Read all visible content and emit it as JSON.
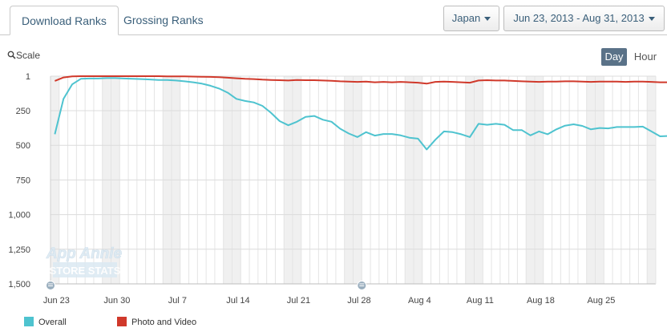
{
  "tabs": [
    {
      "label": "Download Ranks",
      "active": true
    },
    {
      "label": "Grossing Ranks",
      "active": false
    }
  ],
  "country_select": {
    "value": "Japan"
  },
  "date_range_select": {
    "value": "Jun 23, 2013 - Aug 31, 2013"
  },
  "controls": {
    "scale_label": "Scale",
    "scale_icon": "zoom-icon",
    "day_label": "Day",
    "hour_label": "Hour",
    "active_granularity": "Day"
  },
  "watermark": {
    "line1": "App Annie",
    "line2": "STORE STATS"
  },
  "colors": {
    "overall": "#4ec3cf",
    "photo_video": "#d0392b",
    "active_button": "#5a7288",
    "link": "#3a5f7a"
  },
  "chart_data": {
    "type": "line",
    "title": "",
    "xlabel": "",
    "ylabel": "",
    "x_start": "2013-06-23",
    "x_end": "2013-08-31",
    "x_ticks": [
      "Jun 23",
      "Jun 30",
      "Jul 7",
      "Jul 14",
      "Jul 21",
      "Jul 28",
      "Aug 4",
      "Aug 11",
      "Aug 18",
      "Aug 25"
    ],
    "y_ticks": [
      "1",
      "250",
      "500",
      "750",
      "1,000",
      "1,250",
      "1,500"
    ],
    "y_range": [
      1,
      1500
    ],
    "y_inverted": true,
    "grid": true,
    "legend_position": "bottom-left",
    "series": [
      {
        "name": "Overall",
        "values": [
          420,
          165,
          60,
          20,
          18,
          18,
          15,
          15,
          18,
          20,
          22,
          25,
          28,
          28,
          32,
          38,
          45,
          55,
          70,
          90,
          120,
          165,
          180,
          190,
          215,
          265,
          325,
          355,
          330,
          295,
          288,
          315,
          330,
          380,
          415,
          440,
          405,
          430,
          418,
          418,
          428,
          445,
          452,
          530,
          460,
          400,
          405,
          420,
          440,
          345,
          352,
          345,
          352,
          390,
          390,
          428,
          400,
          420,
          385,
          358,
          348,
          360,
          385,
          375,
          378,
          368,
          368,
          368,
          365,
          400,
          435,
          432
        ]
      },
      {
        "name": "Photo and Video",
        "values": [
          35,
          10,
          2,
          1,
          1,
          1,
          1,
          1,
          1,
          1,
          1,
          1,
          1,
          2,
          2,
          3,
          4,
          5,
          6,
          8,
          12,
          16,
          20,
          22,
          26,
          28,
          30,
          32,
          28,
          30,
          30,
          32,
          34,
          38,
          40,
          42,
          40,
          45,
          42,
          45,
          42,
          45,
          48,
          55,
          42,
          40,
          42,
          45,
          48,
          32,
          30,
          32,
          32,
          35,
          38,
          40,
          42,
          40,
          40,
          38,
          38,
          40,
          42,
          40,
          40,
          40,
          42,
          40,
          40,
          42,
          45,
          45
        ]
      }
    ]
  }
}
